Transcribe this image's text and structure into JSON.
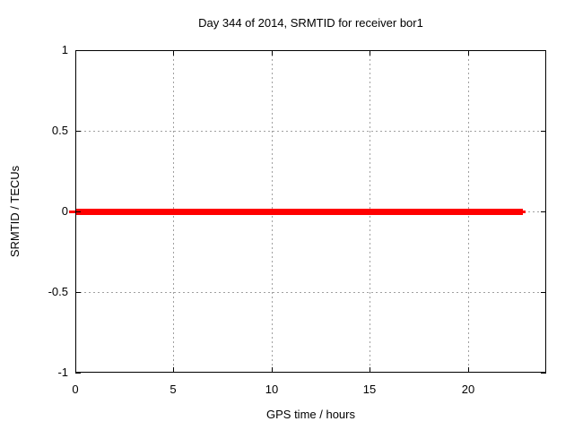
{
  "chart_data": {
    "type": "line",
    "title": "Day 344 of 2014, SRMTID for receiver bor1",
    "xlabel": "GPS time / hours",
    "ylabel": "SRMTID / TECUs",
    "xlim": [
      0,
      24
    ],
    "ylim": [
      -1,
      1
    ],
    "x_ticks": [
      0,
      5,
      10,
      15,
      20
    ],
    "x_tick_labels": [
      "0",
      "5",
      "10",
      "15",
      "20"
    ],
    "y_ticks": [
      1,
      0.5,
      0,
      -0.5,
      -1
    ],
    "y_tick_labels": [
      "1",
      "0.5",
      "0",
      "-0.5",
      "-1"
    ],
    "grid": true,
    "legend": "none",
    "series": [
      {
        "name": "SRMTID",
        "x": [
          0,
          22.8
        ],
        "y": [
          0,
          0
        ],
        "color": "#ff0000"
      }
    ],
    "colors": {
      "line": "#ff0000",
      "grid": "#a0a0a0",
      "axis": "#000000",
      "background": "#ffffff",
      "text": "#000000"
    }
  }
}
